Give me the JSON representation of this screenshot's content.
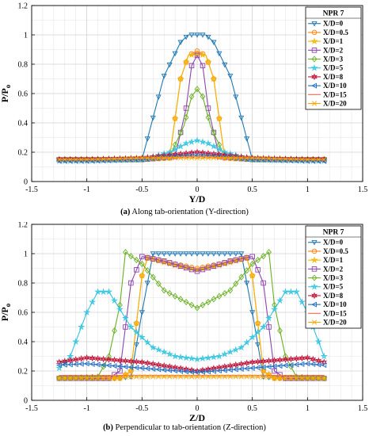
{
  "colors": [
    "#1f77b4",
    "#ff7f0e",
    "#f5b400",
    "#8e44ad",
    "#6ab023",
    "#33c5e0",
    "#c0163a",
    "#1e6fc4",
    "#ff6347",
    "#ffa500"
  ],
  "markers": [
    "tri-down",
    "circle",
    "star",
    "square",
    "diamond",
    "star",
    "hexagram",
    "tri-left",
    "none",
    "x"
  ],
  "chart_data": [
    {
      "type": "line",
      "xlabel": "Y/D",
      "ylabel": "P/P",
      "ylabel_sub": "o",
      "xlim": [
        -1.5,
        1.5
      ],
      "ylim": [
        0,
        1.2
      ],
      "xticks": [
        -1.5,
        -1,
        -0.5,
        0,
        0.5,
        1,
        1.5
      ],
      "yticks": [
        0,
        0.2,
        0.4,
        0.6,
        0.8,
        1,
        1.2
      ],
      "grid": true,
      "legend_title": "NPR 7",
      "legend_position": "top-right",
      "caption_label": "(a)",
      "caption_text": " Along tab-orientation (Y-direction)",
      "series": [
        {
          "name": "X/D=0",
          "x": [
            -1.25,
            -1.0,
            -0.75,
            -0.5,
            -0.3,
            -0.15,
            -0.08,
            0,
            0.08,
            0.15,
            0.3,
            0.5,
            0.75,
            1.0,
            1.15
          ],
          "y": [
            0.15,
            0.15,
            0.15,
            0.15,
            0.72,
            0.95,
            1.0,
            1.0,
            1.0,
            0.95,
            0.72,
            0.15,
            0.15,
            0.15,
            0.15
          ]
        },
        {
          "name": "X/D=0.5",
          "x": [
            -1.25,
            -1.0,
            -0.5,
            -0.25,
            -0.15,
            -0.08,
            0,
            0.08,
            0.15,
            0.25,
            0.5,
            1.0,
            1.15
          ],
          "y": [
            0.15,
            0.15,
            0.15,
            0.16,
            0.7,
            0.86,
            0.89,
            0.86,
            0.7,
            0.16,
            0.15,
            0.15,
            0.15
          ]
        },
        {
          "name": "X/D=1",
          "x": [
            -1.25,
            -1.0,
            -0.5,
            -0.25,
            -0.15,
            -0.08,
            0,
            0.08,
            0.15,
            0.25,
            0.5,
            1.0,
            1.15
          ],
          "y": [
            0.15,
            0.15,
            0.15,
            0.16,
            0.7,
            0.86,
            0.87,
            0.86,
            0.7,
            0.16,
            0.15,
            0.15,
            0.15
          ]
        },
        {
          "name": "X/D=2",
          "x": [
            -1.25,
            -1.0,
            -0.5,
            -0.2,
            -0.1,
            -0.05,
            0,
            0.05,
            0.1,
            0.2,
            0.5,
            1.0,
            1.15
          ],
          "y": [
            0.15,
            0.15,
            0.15,
            0.17,
            0.5,
            0.79,
            0.86,
            0.79,
            0.5,
            0.17,
            0.15,
            0.15,
            0.15
          ]
        },
        {
          "name": "X/D=3",
          "x": [
            -1.25,
            -1.0,
            -0.5,
            -0.25,
            -0.12,
            -0.05,
            0,
            0.05,
            0.12,
            0.25,
            0.5,
            1.0,
            1.15
          ],
          "y": [
            0.15,
            0.15,
            0.15,
            0.17,
            0.38,
            0.58,
            0.63,
            0.58,
            0.38,
            0.17,
            0.15,
            0.15,
            0.15
          ]
        },
        {
          "name": "X/D=5",
          "x": [
            -1.25,
            -1.0,
            -0.5,
            -0.25,
            -0.1,
            0,
            0.1,
            0.25,
            0.5,
            1.0,
            1.15
          ],
          "y": [
            0.14,
            0.14,
            0.15,
            0.2,
            0.26,
            0.28,
            0.26,
            0.2,
            0.15,
            0.14,
            0.14
          ]
        },
        {
          "name": "X/D=8",
          "x": [
            -1.25,
            -1.0,
            -0.5,
            -0.25,
            0,
            0.25,
            0.5,
            1.0,
            1.15
          ],
          "y": [
            0.15,
            0.15,
            0.16,
            0.18,
            0.2,
            0.18,
            0.16,
            0.15,
            0.15
          ]
        },
        {
          "name": "X/D=10",
          "x": [
            -1.25,
            -1.0,
            -0.5,
            -0.25,
            0,
            0.25,
            0.5,
            1.0,
            1.15
          ],
          "y": [
            0.14,
            0.14,
            0.15,
            0.17,
            0.18,
            0.17,
            0.15,
            0.14,
            0.14
          ]
        },
        {
          "name": "X/D=15",
          "x": [
            -1.25,
            -1.0,
            -0.5,
            0,
            0.5,
            1.0,
            1.15
          ],
          "y": [
            0.15,
            0.15,
            0.16,
            0.17,
            0.16,
            0.15,
            0.15
          ]
        },
        {
          "name": "X/D=20",
          "x": [
            -1.25,
            -1.0,
            -0.5,
            0,
            0.5,
            1.0,
            1.15
          ],
          "y": [
            0.15,
            0.15,
            0.16,
            0.16,
            0.16,
            0.15,
            0.15
          ]
        }
      ]
    },
    {
      "type": "line",
      "xlabel": "Z/D",
      "ylabel": "P/P",
      "ylabel_sub": "o",
      "xlim": [
        -1.5,
        1.5
      ],
      "ylim": [
        0,
        1.2
      ],
      "xticks": [
        -1.5,
        -1,
        -0.5,
        0,
        0.5,
        1,
        1.5
      ],
      "yticks": [
        0,
        0.2,
        0.4,
        0.6,
        0.8,
        1,
        1.2
      ],
      "grid": true,
      "legend_title": "NPR 7",
      "legend_position": "top-right",
      "caption_label": "(b)",
      "caption_text": " Perpendicular to tab-orientation (Z-direction)",
      "series": [
        {
          "name": "X/D=0",
          "x": [
            -1.25,
            -0.75,
            -0.6,
            -0.5,
            -0.4,
            -0.2,
            0,
            0.2,
            0.4,
            0.5,
            0.6,
            0.75,
            1.15
          ],
          "y": [
            0.15,
            0.15,
            0.16,
            0.6,
            1.0,
            1.0,
            1.0,
            1.0,
            1.0,
            0.6,
            0.16,
            0.15,
            0.15
          ]
        },
        {
          "name": "X/D=0.5",
          "x": [
            -1.25,
            -0.7,
            -0.6,
            -0.5,
            -0.45,
            -0.2,
            0,
            0.2,
            0.45,
            0.5,
            0.6,
            0.7,
            1.15
          ],
          "y": [
            0.15,
            0.15,
            0.2,
            0.85,
            0.97,
            0.93,
            0.9,
            0.93,
            0.97,
            0.85,
            0.2,
            0.15,
            0.15
          ]
        },
        {
          "name": "X/D=1",
          "x": [
            -1.25,
            -0.7,
            -0.6,
            -0.5,
            -0.45,
            -0.2,
            0,
            0.2,
            0.45,
            0.5,
            0.6,
            0.7,
            1.15
          ],
          "y": [
            0.15,
            0.15,
            0.2,
            0.85,
            0.97,
            0.92,
            0.89,
            0.92,
            0.97,
            0.85,
            0.2,
            0.15,
            0.15
          ]
        },
        {
          "name": "X/D=2",
          "x": [
            -1.25,
            -0.8,
            -0.7,
            -0.6,
            -0.5,
            -0.3,
            0,
            0.3,
            0.5,
            0.6,
            0.7,
            0.8,
            1.15
          ],
          "y": [
            0.15,
            0.15,
            0.2,
            0.8,
            0.98,
            0.95,
            0.88,
            0.95,
            0.98,
            0.8,
            0.2,
            0.15,
            0.15
          ]
        },
        {
          "name": "X/D=3",
          "x": [
            -1.25,
            -0.9,
            -0.8,
            -0.7,
            -0.65,
            -0.5,
            -0.3,
            0,
            0.3,
            0.5,
            0.65,
            0.7,
            0.8,
            0.9,
            1.15
          ],
          "y": [
            0.15,
            0.16,
            0.3,
            0.65,
            1.01,
            0.93,
            0.75,
            0.63,
            0.75,
            0.93,
            1.01,
            0.65,
            0.3,
            0.16,
            0.15
          ]
        },
        {
          "name": "X/D=5",
          "x": [
            -1.25,
            -1.15,
            -1.0,
            -0.9,
            -0.8,
            -0.6,
            -0.4,
            -0.2,
            0,
            0.2,
            0.4,
            0.6,
            0.8,
            0.9,
            1.0,
            1.15
          ],
          "y": [
            0.22,
            0.3,
            0.6,
            0.74,
            0.74,
            0.5,
            0.36,
            0.3,
            0.28,
            0.3,
            0.36,
            0.5,
            0.74,
            0.74,
            0.6,
            0.3
          ]
        },
        {
          "name": "X/D=8",
          "x": [
            -1.25,
            -1.0,
            -0.5,
            0,
            0.5,
            1.0,
            1.15
          ],
          "y": [
            0.26,
            0.29,
            0.26,
            0.2,
            0.26,
            0.29,
            0.26
          ]
        },
        {
          "name": "X/D=10",
          "x": [
            -1.25,
            -1.0,
            -0.5,
            0,
            0.5,
            1.0,
            1.15
          ],
          "y": [
            0.24,
            0.25,
            0.22,
            0.19,
            0.22,
            0.25,
            0.24
          ]
        },
        {
          "name": "X/D=15",
          "x": [
            -1.25,
            -0.5,
            0,
            0.5,
            1.15
          ],
          "y": [
            0.17,
            0.17,
            0.17,
            0.17,
            0.17
          ]
        },
        {
          "name": "X/D=20",
          "x": [
            -1.25,
            -0.5,
            0,
            0.5,
            1.15
          ],
          "y": [
            0.15,
            0.16,
            0.16,
            0.16,
            0.15
          ]
        }
      ]
    }
  ]
}
